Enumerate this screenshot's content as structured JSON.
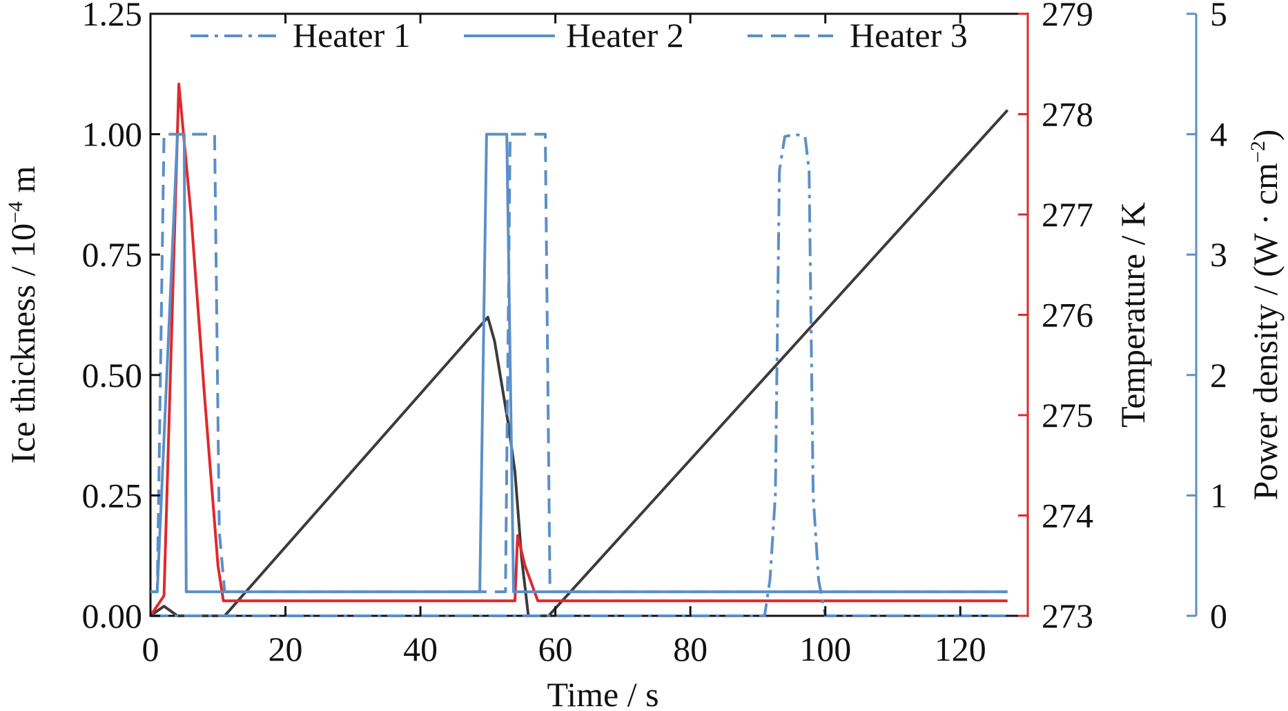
{
  "chart_data": {
    "type": "line",
    "title": "",
    "xlabel": "Time / s",
    "x_ticks": [
      "0",
      "20",
      "40",
      "60",
      "80",
      "100",
      "120"
    ],
    "xlim": [
      0,
      130
    ],
    "axes": {
      "left": {
        "label_main": "Ice thickness / 10",
        "label_sup": "−4",
        "label_unit": " m",
        "ticks": [
          "0.00",
          "0.25",
          "0.50",
          "0.75",
          "1.00",
          "1.25"
        ],
        "ylim": [
          0,
          1.25
        ],
        "color": "#111111"
      },
      "right_temperature": {
        "label": "Temperature / K",
        "ticks": [
          "273",
          "274",
          "275",
          "276",
          "277",
          "278",
          "279"
        ],
        "ylim": [
          273,
          279
        ],
        "color": "#e0282b"
      },
      "right_power": {
        "label_main": "Power density / (W · cm",
        "label_sup": "−2",
        "label_close": ")",
        "ticks": [
          "0",
          "1",
          "2",
          "3",
          "4",
          "5"
        ],
        "ylim": [
          0,
          5
        ],
        "color": "#5b8fc7"
      }
    },
    "legend": {
      "position": "top",
      "entries": [
        {
          "label": "Heater 1",
          "style": "dash-dot"
        },
        {
          "label": "Heater 2",
          "style": "solid"
        },
        {
          "label": "Heater 3",
          "style": "dashed"
        }
      ]
    },
    "series": [
      {
        "axis": "left",
        "color": "#3d3a39",
        "style": "solid",
        "x": [
          0,
          2,
          3,
          4,
          5,
          11,
          50,
          51,
          53,
          54,
          55,
          56,
          57,
          59,
          127
        ],
        "y": [
          0.0,
          0.02,
          0.01,
          0.0,
          0.0,
          0.0,
          0.62,
          0.57,
          0.4,
          0.3,
          0.12,
          0.0,
          0.0,
          0.0,
          1.05
        ]
      },
      {
        "axis": "right_temperature",
        "color": "#e0282b",
        "style": "solid",
        "x": [
          0,
          2,
          4.2,
          6,
          8,
          10,
          10.8,
          54,
          54.4,
          55.5,
          57.4,
          127
        ],
        "y": [
          273.0,
          273.2,
          278.3,
          277.0,
          275.2,
          273.5,
          273.15,
          273.15,
          273.8,
          273.5,
          273.15,
          273.15
        ]
      },
      {
        "axis": "right_power",
        "name": "Heater 1",
        "color": "#5b8fc7",
        "style": "dash-dot",
        "x": [
          0,
          91,
          91.8,
          92.6,
          93.2,
          94,
          95.5,
          97,
          97.6,
          98.2,
          99,
          100,
          127
        ],
        "y": [
          0,
          0,
          0.3,
          1.0,
          3.7,
          3.98,
          4.0,
          3.98,
          3.7,
          1.0,
          0.3,
          0,
          0
        ]
      },
      {
        "axis": "right_power",
        "name": "Heater 2",
        "color": "#5b8fc7",
        "style": "solid",
        "x": [
          0,
          1,
          4,
          5,
          5.3,
          7,
          48.8,
          49.8,
          52.8,
          53.8,
          127
        ],
        "y": [
          0.2,
          0.2,
          4.0,
          4.0,
          0.2,
          0.2,
          0.2,
          4.0,
          4.0,
          0.2,
          0.2
        ]
      },
      {
        "axis": "right_power",
        "name": "Heater 3",
        "color": "#5b8fc7",
        "style": "dashed",
        "x": [
          0,
          1,
          2,
          9.5,
          10.2,
          11,
          52.6,
          53.3,
          58.5,
          59.2,
          127
        ],
        "y": [
          0.2,
          0.2,
          4.0,
          4.0,
          0.7,
          0.2,
          0.2,
          4.0,
          4.0,
          0.2,
          0.2
        ]
      }
    ]
  }
}
